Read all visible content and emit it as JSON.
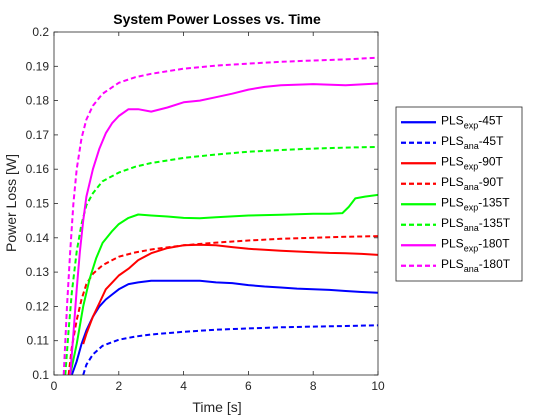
{
  "chart_data": {
    "type": "line",
    "title": "System Power Losses vs. Time",
    "xlabel": "Time [s]",
    "ylabel": "Power Loss [W]",
    "xlim": [
      0,
      10
    ],
    "ylim": [
      0.1,
      0.2
    ],
    "xticks": [
      0,
      2,
      4,
      6,
      8,
      10
    ],
    "yticks": [
      0.1,
      0.11,
      0.12,
      0.13,
      0.14,
      0.15,
      0.16,
      0.17,
      0.18,
      0.19,
      0.2
    ],
    "ytick_labels": [
      "0.1",
      "0.11",
      "0.12",
      "0.13",
      "0.14",
      "0.15",
      "0.16",
      "0.17",
      "0.18",
      "0.19",
      "0.2"
    ],
    "xtick_labels": [
      "0",
      "2",
      "4",
      "6",
      "8",
      "10"
    ],
    "grid": false,
    "legend_position": "outside-right",
    "series": [
      {
        "name": "PLS_exp-45T",
        "legend_main": "PLS",
        "legend_sub": "exp",
        "legend_suffix": "-45T",
        "color": "#0000ff",
        "style": "solid",
        "x": [
          0.55,
          0.7,
          0.85,
          1.0,
          1.2,
          1.4,
          1.6,
          1.8,
          2.0,
          2.3,
          2.6,
          3.0,
          3.5,
          4.0,
          4.5,
          5.0,
          5.5,
          6.0,
          6.5,
          7.0,
          7.5,
          8.0,
          8.5,
          9.0,
          9.5,
          10.0
        ],
        "y": [
          0.1,
          0.104,
          0.109,
          0.113,
          0.117,
          0.12,
          0.122,
          0.1235,
          0.125,
          0.1265,
          0.127,
          0.1275,
          0.1275,
          0.1275,
          0.1275,
          0.127,
          0.1268,
          0.1262,
          0.1258,
          0.1255,
          0.1252,
          0.125,
          0.1248,
          0.1245,
          0.1242,
          0.124
        ]
      },
      {
        "name": "PLS_ana-45T",
        "legend_main": "PLS",
        "legend_sub": "ana",
        "legend_suffix": "-45T",
        "color": "#0000ff",
        "style": "dashed",
        "x": [
          0.9,
          1.0,
          1.2,
          1.5,
          2.0,
          2.5,
          3.0,
          4.0,
          5.0,
          6.0,
          7.0,
          8.0,
          9.0,
          10.0
        ],
        "y": [
          0.1,
          0.103,
          0.106,
          0.1085,
          0.1103,
          0.1112,
          0.1118,
          0.1126,
          0.1132,
          0.1136,
          0.1139,
          0.1141,
          0.1143,
          0.1145
        ]
      },
      {
        "name": "PLS_exp-90T",
        "legend_main": "PLS",
        "legend_sub": "exp",
        "legend_suffix": "-90T",
        "color": "#ff0000",
        "style": "solid",
        "x": [
          0.9,
          1.0,
          1.2,
          1.4,
          1.6,
          1.8,
          2.0,
          2.3,
          2.6,
          3.0,
          3.5,
          4.0,
          4.5,
          5.0,
          5.5,
          6.0,
          6.5,
          7.0,
          7.5,
          8.0,
          8.5,
          9.0,
          9.5,
          10.0
        ],
        "y": [
          0.109,
          0.112,
          0.117,
          0.121,
          0.125,
          0.127,
          0.129,
          0.131,
          0.1335,
          0.1355,
          0.137,
          0.1378,
          0.138,
          0.1378,
          0.1373,
          0.1368,
          0.1365,
          0.1362,
          0.136,
          0.1358,
          0.1356,
          0.1355,
          0.1353,
          0.135
        ]
      },
      {
        "name": "PLS_ana-90T",
        "legend_main": "PLS",
        "legend_sub": "ana",
        "legend_suffix": "-90T",
        "color": "#ff0000",
        "style": "dashed",
        "x": [
          0.45,
          0.55,
          0.7,
          0.85,
          1.0,
          1.2,
          1.5,
          2.0,
          2.5,
          3.0,
          4.0,
          5.0,
          6.0,
          7.0,
          8.0,
          9.0,
          10.0
        ],
        "y": [
          0.1,
          0.108,
          0.116,
          0.122,
          0.1265,
          0.1295,
          0.132,
          0.1345,
          0.1357,
          0.1366,
          0.1378,
          0.1386,
          0.1392,
          0.1397,
          0.14,
          0.1403,
          0.1405
        ]
      },
      {
        "name": "PLS_exp-135T",
        "legend_main": "PLS",
        "legend_sub": "exp",
        "legend_suffix": "-135T",
        "color": "#00ff00",
        "style": "solid",
        "x": [
          0.5,
          0.7,
          0.9,
          1.1,
          1.3,
          1.5,
          1.8,
          2.0,
          2.3,
          2.6,
          3.0,
          3.5,
          4.0,
          4.5,
          5.0,
          6.0,
          7.0,
          8.0,
          8.5,
          8.9,
          9.1,
          9.3,
          9.6,
          10.0
        ],
        "y": [
          0.1,
          0.109,
          0.12,
          0.128,
          0.134,
          0.1385,
          0.142,
          0.144,
          0.1458,
          0.1468,
          0.1465,
          0.1462,
          0.1458,
          0.1457,
          0.146,
          0.1465,
          0.1467,
          0.147,
          0.147,
          0.1472,
          0.149,
          0.1515,
          0.152,
          0.1525
        ]
      },
      {
        "name": "PLS_ana-135T",
        "legend_main": "PLS",
        "legend_sub": "ana",
        "legend_suffix": "-135T",
        "color": "#00ff00",
        "style": "dashed",
        "x": [
          0.35,
          0.45,
          0.55,
          0.7,
          0.85,
          1.0,
          1.2,
          1.5,
          2.0,
          2.5,
          3.0,
          4.0,
          5.0,
          6.0,
          7.0,
          8.0,
          9.0,
          10.0
        ],
        "y": [
          0.1,
          0.113,
          0.124,
          0.136,
          0.144,
          0.1495,
          0.153,
          0.1565,
          0.159,
          0.1607,
          0.1618,
          0.1633,
          0.1643,
          0.1651,
          0.1656,
          0.166,
          0.1663,
          0.1665
        ]
      },
      {
        "name": "PLS_exp-180T",
        "legend_main": "PLS",
        "legend_sub": "exp",
        "legend_suffix": "-180T",
        "color": "#ff00ff",
        "style": "solid",
        "x": [
          0.5,
          0.6,
          0.7,
          0.8,
          0.9,
          1.0,
          1.2,
          1.4,
          1.6,
          1.8,
          2.0,
          2.3,
          2.6,
          3.0,
          3.5,
          4.0,
          4.5,
          5.0,
          5.5,
          6.0,
          6.5,
          7.0,
          8.0,
          9.0,
          10.0
        ],
        "y": [
          0.1,
          0.112,
          0.125,
          0.136,
          0.145,
          0.152,
          0.16,
          0.166,
          0.1705,
          0.1735,
          0.1755,
          0.1775,
          0.1775,
          0.1768,
          0.178,
          0.1795,
          0.18,
          0.181,
          0.182,
          0.1832,
          0.184,
          0.1845,
          0.1848,
          0.1845,
          0.185
        ]
      },
      {
        "name": "PLS_ana-180T",
        "legend_main": "PLS",
        "legend_sub": "ana",
        "legend_suffix": "-180T",
        "color": "#ff00ff",
        "style": "dashed",
        "x": [
          0.3,
          0.4,
          0.5,
          0.6,
          0.7,
          0.85,
          1.0,
          1.2,
          1.5,
          2.0,
          2.5,
          3.0,
          4.0,
          5.0,
          6.0,
          7.0,
          8.0,
          9.0,
          10.0
        ],
        "y": [
          0.1,
          0.12,
          0.136,
          0.15,
          0.16,
          0.169,
          0.1745,
          0.1785,
          0.182,
          0.1852,
          0.1868,
          0.1878,
          0.1893,
          0.1902,
          0.1908,
          0.1913,
          0.1917,
          0.192,
          0.1925
        ]
      }
    ]
  }
}
